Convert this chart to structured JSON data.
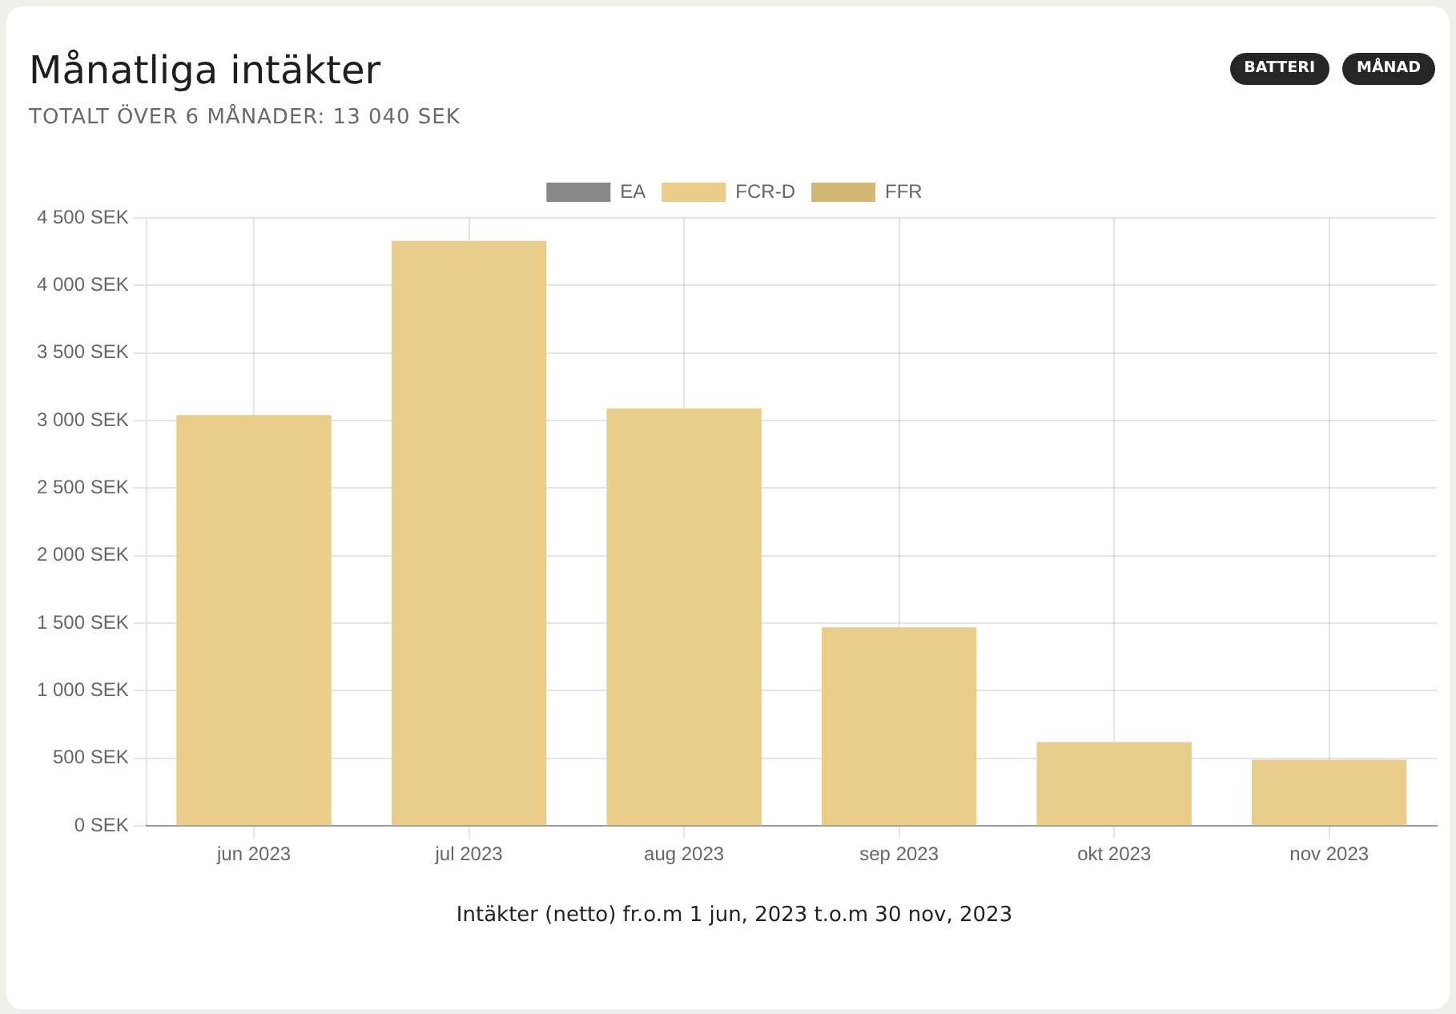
{
  "chart_data": {
    "type": "bar",
    "title": "Månatliga intäkter",
    "subtitle": "TOTALT ÖVER 6 MÅNADER: 13 040 SEK",
    "xlabel": "Intäkter (netto) fr.o.m 1 jun, 2023 t.o.m 30 nov, 2023",
    "annotations": [
      "BATTERI",
      "MÅNAD"
    ],
    "categories": [
      "jun 2023",
      "jul 2023",
      "aug 2023",
      "sep 2023",
      "okt 2023",
      "nov 2023"
    ],
    "series": [
      {
        "name": "EA",
        "color": "#888888",
        "values": [
          null,
          null,
          null,
          null,
          null,
          null
        ]
      },
      {
        "name": "FCR-D",
        "color": "#e9cd89",
        "values": [
          3040,
          4330,
          3090,
          1470,
          620,
          490
        ]
      },
      {
        "name": "FFR",
        "color": "#d2b877",
        "values": [
          null,
          null,
          null,
          null,
          null,
          null
        ]
      }
    ],
    "ylim": [
      0,
      4500
    ],
    "yticks": [
      {
        "value": 0,
        "label": "0 SEK"
      },
      {
        "value": 500,
        "label": "500 SEK"
      },
      {
        "value": 1000,
        "label": "1 000 SEK"
      },
      {
        "value": 1500,
        "label": "1 500 SEK"
      },
      {
        "value": 2000,
        "label": "2 000 SEK"
      },
      {
        "value": 2500,
        "label": "2 500 SEK"
      },
      {
        "value": 3000,
        "label": "3 000 SEK"
      },
      {
        "value": 3500,
        "label": "3 500 SEK"
      },
      {
        "value": 4000,
        "label": "4 000 SEK"
      },
      {
        "value": 4500,
        "label": "4 500 SEK"
      }
    ],
    "grid": true,
    "legend": "top"
  }
}
